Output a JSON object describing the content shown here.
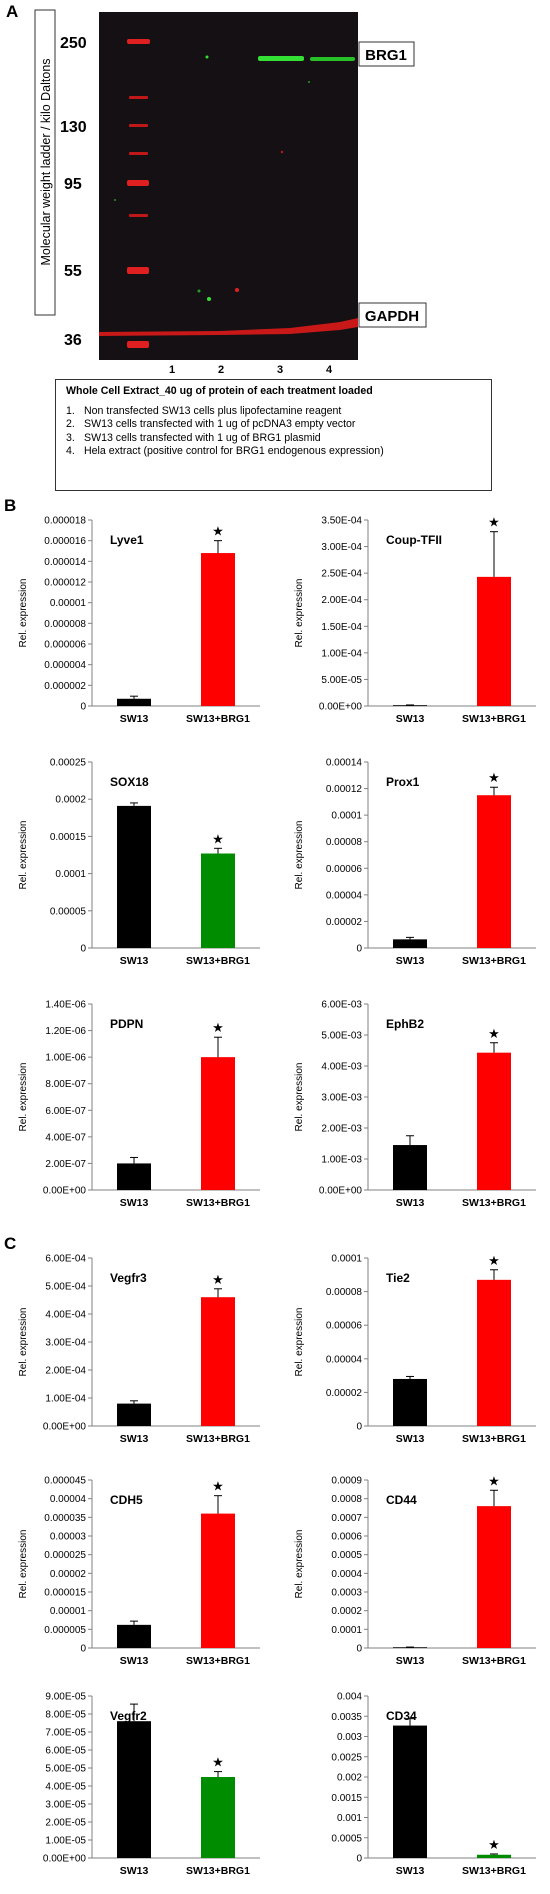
{
  "panel_a": {
    "letter": "A",
    "ylabel": "Molecular weight ladder / kilo Daltons",
    "ladder_kda": [
      "250",
      "130",
      "95",
      "55",
      "36"
    ],
    "lane_numbers": [
      "1",
      "2",
      "3",
      "4"
    ],
    "band_labels": [
      "BRG1",
      "GAPDH"
    ],
    "colors": {
      "blot_bg": "#141014",
      "ladder": "#e02020",
      "gapdh": "#c81818",
      "brg1": "#33e033"
    },
    "legend_title": "Whole Cell Extract_40 ug of protein of each treatment loaded",
    "legend_items": [
      {
        "num": "1.",
        "text": "Non transfected SW13 cells plus lipofectamine reagent"
      },
      {
        "num": "2.",
        "text": "SW13 cells transfected with 1 ug of pcDNA3 empty vector"
      },
      {
        "num": "3.",
        "text": "SW13 cells transfected with 1 ug of BRG1 plasmid"
      },
      {
        "num": "4.",
        "text": "Hela extract (positive control for BRG1 endogenous expression)"
      }
    ]
  },
  "panel_b": {
    "letter": "B"
  },
  "panel_c": {
    "letter": "C"
  },
  "colors": {
    "black": "#000000",
    "red": "#ff0000",
    "green": "#008c00",
    "axis": "#808080"
  },
  "chart_data": [
    {
      "id": "lyve1",
      "type": "bar",
      "title": "Lyve1",
      "categories": [
        "SW13",
        "SW13+BRG1"
      ],
      "values": [
        7e-07,
        1.48e-05
      ],
      "errors": [
        2.5e-07,
        1.2e-06
      ],
      "colors": [
        "#000000",
        "#ff0000"
      ],
      "star": [
        false,
        true
      ],
      "ylabel": "Rel. expression",
      "ylim": [
        0,
        1.8e-05
      ],
      "ticks": [
        "0",
        "0.000002",
        "0.000004",
        "0.000006",
        "0.000008",
        "0.00001",
        "0.000012",
        "0.000014",
        "0.000016",
        "0.000018"
      ]
    },
    {
      "id": "couptfii",
      "type": "bar",
      "title": "Coup-TFII",
      "categories": [
        "SW13",
        "SW13+BRG1"
      ],
      "values": [
        1.5e-06,
        0.000243
      ],
      "errors": [
        5e-07,
        8.5e-05
      ],
      "colors": [
        "#000000",
        "#ff0000"
      ],
      "star": [
        false,
        true
      ],
      "ylabel": "Rel. expression",
      "ylim": [
        0,
        0.00035
      ],
      "ticks": [
        "0.00E+00",
        "5.00E-05",
        "1.00E-04",
        "1.50E-04",
        "2.00E-04",
        "2.50E-04",
        "3.00E-04",
        "3.50E-04"
      ]
    },
    {
      "id": "sox18",
      "type": "bar",
      "title": "SOX18",
      "categories": [
        "SW13",
        "SW13+BRG1"
      ],
      "values": [
        0.000191,
        0.000127
      ],
      "errors": [
        4e-06,
        7e-06
      ],
      "colors": [
        "#000000",
        "#008c00"
      ],
      "star": [
        false,
        true
      ],
      "ylabel": "Rel. expression",
      "ylim": [
        0,
        0.00025
      ],
      "ticks": [
        "0",
        "0.00005",
        "0.0001",
        "0.00015",
        "0.0002",
        "0.00025"
      ]
    },
    {
      "id": "prox1",
      "type": "bar",
      "title": "Prox1",
      "categories": [
        "SW13",
        "SW13+BRG1"
      ],
      "values": [
        6.5e-06,
        0.000115
      ],
      "errors": [
        1.5e-06,
        6e-06
      ],
      "colors": [
        "#000000",
        "#ff0000"
      ],
      "star": [
        false,
        true
      ],
      "ylabel": "Rel. expression",
      "ylim": [
        0,
        0.00014
      ],
      "ticks": [
        "0",
        "0.00002",
        "0.00004",
        "0.00006",
        "0.00008",
        "0.0001",
        "0.00012",
        "0.00014"
      ]
    },
    {
      "id": "pdpn",
      "type": "bar",
      "title": "PDPN",
      "categories": [
        "SW13",
        "SW13+BRG1"
      ],
      "values": [
        2e-07,
        1e-06
      ],
      "errors": [
        4.5e-08,
        1.5e-07
      ],
      "colors": [
        "#000000",
        "#ff0000"
      ],
      "star": [
        false,
        true
      ],
      "ylabel": "Rel. expression",
      "ylim": [
        0,
        1.4e-06
      ],
      "ticks": [
        "0.00E+00",
        "2.00E-07",
        "4.00E-07",
        "6.00E-07",
        "8.00E-07",
        "1.00E-06",
        "1.20E-06",
        "1.40E-06"
      ]
    },
    {
      "id": "ephb2",
      "type": "bar",
      "title": "EphB2",
      "categories": [
        "SW13",
        "SW13+BRG1"
      ],
      "values": [
        0.00145,
        0.00443
      ],
      "errors": [
        0.0003,
        0.00032
      ],
      "colors": [
        "#000000",
        "#ff0000"
      ],
      "star": [
        false,
        true
      ],
      "ylabel": "Rel. expression",
      "ylim": [
        0,
        0.006
      ],
      "ticks": [
        "0.00E+00",
        "1.00E-03",
        "2.00E-03",
        "3.00E-03",
        "4.00E-03",
        "5.00E-03",
        "6.00E-03"
      ]
    },
    {
      "id": "vegfr3",
      "type": "bar",
      "title": "Vegfr3",
      "categories": [
        "SW13",
        "SW13+BRG1"
      ],
      "values": [
        8e-05,
        0.00046
      ],
      "errors": [
        1e-05,
        3e-05
      ],
      "colors": [
        "#000000",
        "#ff0000"
      ],
      "star": [
        false,
        true
      ],
      "ylabel": "Rel. expression",
      "ylim": [
        0,
        0.0006
      ],
      "ticks": [
        "0.00E+00",
        "1.00E-04",
        "2.00E-04",
        "3.00E-04",
        "4.00E-04",
        "5.00E-04",
        "6.00E-04"
      ]
    },
    {
      "id": "tie2",
      "type": "bar",
      "title": "Tie2",
      "categories": [
        "SW13",
        "SW13+BRG1"
      ],
      "values": [
        2.8e-05,
        8.7e-05
      ],
      "errors": [
        1.5e-06,
        6e-06
      ],
      "colors": [
        "#000000",
        "#ff0000"
      ],
      "star": [
        false,
        true
      ],
      "ylabel": "Rel. expression",
      "ylim": [
        0,
        0.0001
      ],
      "ticks": [
        "0",
        "0.00002",
        "0.00004",
        "0.00006",
        "0.00008",
        "0.0001"
      ]
    },
    {
      "id": "cdh5",
      "type": "bar",
      "title": "CDH5",
      "categories": [
        "SW13",
        "SW13+BRG1"
      ],
      "values": [
        6.2e-06,
        3.6e-05
      ],
      "errors": [
        1e-06,
        4.8e-06
      ],
      "colors": [
        "#000000",
        "#ff0000"
      ],
      "star": [
        false,
        true
      ],
      "ylabel": "Rel. expression",
      "ylim": [
        0,
        4.5e-05
      ],
      "ticks": [
        "0",
        "0.000005",
        "0.00001",
        "0.000015",
        "0.00002",
        "0.000025",
        "0.00003",
        "0.000035",
        "0.00004",
        "0.000045"
      ]
    },
    {
      "id": "cd44",
      "type": "bar",
      "title": "CD44",
      "categories": [
        "SW13",
        "SW13+BRG1"
      ],
      "values": [
        4e-06,
        0.00076
      ],
      "errors": [
        1e-06,
        8.5e-05
      ],
      "colors": [
        "#000000",
        "#ff0000"
      ],
      "star": [
        false,
        true
      ],
      "ylabel": "Rel. expression",
      "ylim": [
        0,
        0.0009
      ],
      "ticks": [
        "0",
        "0.0001",
        "0.0002",
        "0.0003",
        "0.0004",
        "0.0005",
        "0.0006",
        "0.0007",
        "0.0008",
        "0.0009"
      ]
    },
    {
      "id": "vegfr2",
      "type": "bar",
      "title": "Vegfr2",
      "categories": [
        "SW13",
        "SW13+BRG1"
      ],
      "values": [
        7.6e-05,
        4.5e-05
      ],
      "errors": [
        9.5e-06,
        3e-06
      ],
      "colors": [
        "#000000",
        "#008c00"
      ],
      "star": [
        false,
        true
      ],
      "ylabel": "",
      "ylim": [
        0,
        9e-05
      ],
      "ticks": [
        "0.00E+00",
        "1.00E-05",
        "2.00E-05",
        "3.00E-05",
        "4.00E-05",
        "5.00E-05",
        "6.00E-05",
        "7.00E-05",
        "8.00E-05",
        "9.00E-05"
      ]
    },
    {
      "id": "cd34",
      "type": "bar",
      "title": "CD34",
      "categories": [
        "SW13",
        "SW13+BRG1"
      ],
      "values": [
        0.00327,
        8e-05
      ],
      "errors": [
        0.00017,
        2e-05
      ],
      "colors": [
        "#000000",
        "#008c00"
      ],
      "star": [
        false,
        true
      ],
      "ylabel": "",
      "ylim": [
        0,
        0.004
      ],
      "ticks": [
        "0",
        "0.0005",
        "0.001",
        "0.0015",
        "0.002",
        "0.0025",
        "0.003",
        "0.0035",
        "0.004"
      ]
    }
  ]
}
